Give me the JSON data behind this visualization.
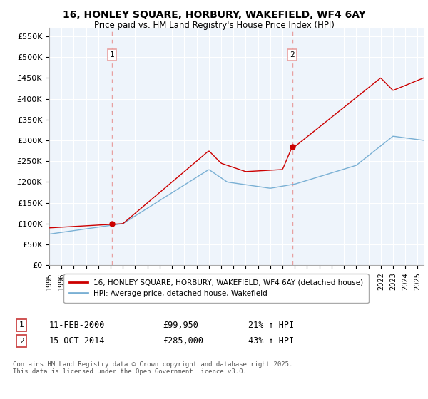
{
  "title": "16, HONLEY SQUARE, HORBURY, WAKEFIELD, WF4 6AY",
  "subtitle": "Price paid vs. HM Land Registry's House Price Index (HPI)",
  "ylabel_ticks": [
    "£0",
    "£50K",
    "£100K",
    "£150K",
    "£200K",
    "£250K",
    "£300K",
    "£350K",
    "£400K",
    "£450K",
    "£500K",
    "£550K"
  ],
  "ytick_values": [
    0,
    50000,
    100000,
    150000,
    200000,
    250000,
    300000,
    350000,
    400000,
    450000,
    500000,
    550000
  ],
  "ylim": [
    0,
    570000
  ],
  "xlim_start": 1995.0,
  "xlim_end": 2025.5,
  "sale1_date": 2000.11,
  "sale1_price": 99950,
  "sale1_label": "1",
  "sale1_date_str": "11-FEB-2000",
  "sale1_price_str": "£99,950",
  "sale1_hpi_str": "21% ↑ HPI",
  "sale2_date": 2014.79,
  "sale2_price": 285000,
  "sale2_label": "2",
  "sale2_date_str": "15-OCT-2014",
  "sale2_price_str": "£285,000",
  "sale2_hpi_str": "43% ↑ HPI",
  "line_color_property": "#cc0000",
  "line_color_hpi": "#7ab0d4",
  "vline_color": "#e8a0a0",
  "background_color": "#ffffff",
  "plot_bg_color": "#eef4fb",
  "grid_color": "#ffffff",
  "legend_label_property": "16, HONLEY SQUARE, HORBURY, WAKEFIELD, WF4 6AY (detached house)",
  "legend_label_hpi": "HPI: Average price, detached house, Wakefield",
  "footer": "Contains HM Land Registry data © Crown copyright and database right 2025.\nThis data is licensed under the Open Government Licence v3.0."
}
